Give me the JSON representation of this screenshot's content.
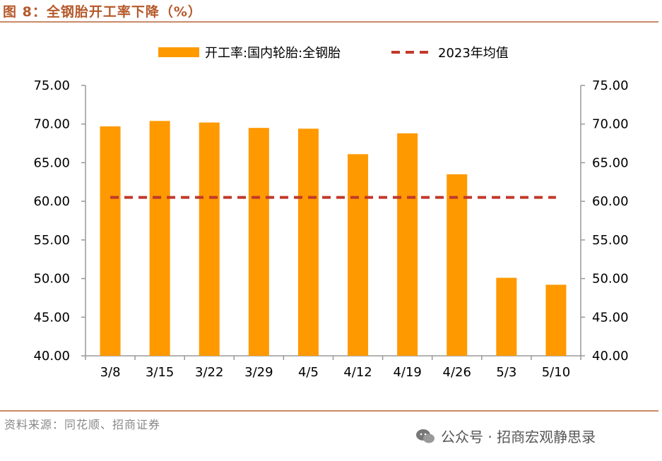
{
  "figure": {
    "title": "图 8：全钢胎开工率下降（%）",
    "source": "资料来源：同花顺、招商证券",
    "watermark": "公众号 · 招商宏观静思录"
  },
  "colors": {
    "bar": "#ff9900",
    "avg_line": "#c0392b",
    "accent": "#b5592a"
  },
  "chart_data": {
    "type": "bar",
    "categories": [
      "3/8",
      "3/15",
      "3/22",
      "3/29",
      "4/5",
      "4/12",
      "4/19",
      "4/26",
      "5/3",
      "5/10"
    ],
    "series": [
      {
        "name": "开工率:国内轮胎:全钢胎",
        "type": "bar",
        "values": [
          69.7,
          70.4,
          70.2,
          69.5,
          69.4,
          66.1,
          68.8,
          63.5,
          50.1,
          49.2
        ]
      },
      {
        "name": "2023年均值",
        "type": "line-dashed",
        "values": [
          60.5,
          60.5,
          60.5,
          60.5,
          60.5,
          60.5,
          60.5,
          60.5,
          60.5,
          60.5
        ]
      }
    ],
    "ylim": [
      40,
      75
    ],
    "yticks": [
      "40.00",
      "45.00",
      "50.00",
      "55.00",
      "60.00",
      "65.00",
      "70.00",
      "75.00"
    ],
    "y2ticks": [
      "40.00",
      "45.00",
      "50.00",
      "55.00",
      "60.00",
      "65.00",
      "70.00",
      "75.00"
    ],
    "legend": "top-center",
    "grid": false
  }
}
